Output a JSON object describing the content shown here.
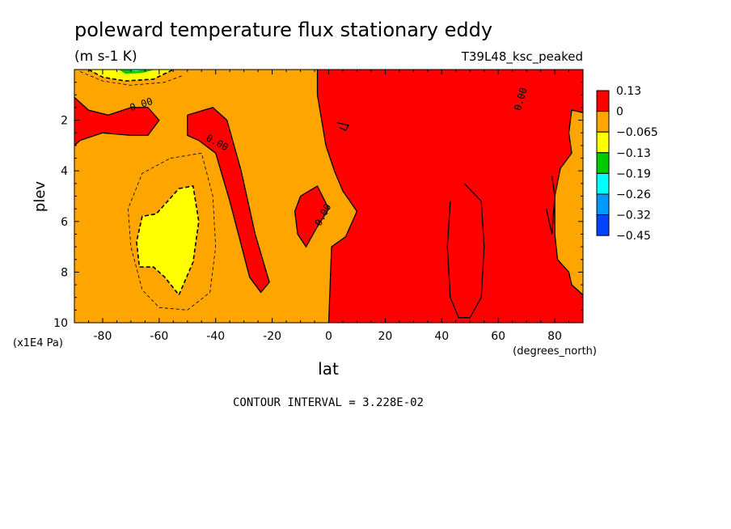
{
  "chart_data": {
    "type": "contour",
    "title": "poleward temperature flux stationary eddy",
    "units": "(m s-1 K)",
    "run_label": "T39L48_ksc_peaked",
    "xlabel": "lat",
    "x_units": "(degrees_north)",
    "ylabel": "plev",
    "y_scale_label": "(x1E4 Pa)",
    "xlim": [
      -90,
      90
    ],
    "ylim": [
      10,
      0
    ],
    "x_ticks": [
      -80,
      -60,
      -40,
      -20,
      0,
      20,
      40,
      60,
      80
    ],
    "x_tick_labels": [
      "-80",
      "-60",
      "-40",
      "-20",
      "0",
      "20",
      "40",
      "60",
      "80"
    ],
    "y_ticks": [
      2,
      4,
      6,
      8,
      10
    ],
    "y_tick_labels": [
      "2",
      "4",
      "6",
      "8",
      "10"
    ],
    "contour_interval_text": "CONTOUR INTERVAL = 3.228E-02",
    "contour_labels": [
      "0.00",
      "0.00",
      "0.00",
      "0.00",
      "0.00"
    ],
    "colorbar": {
      "levels": [
        "0.13",
        "0",
        "−0.065",
        "−0.13",
        "−0.19",
        "−0.26",
        "−0.32",
        "−0.45"
      ],
      "colors": [
        "#ff0000",
        "#ffa500",
        "#ffff00",
        "#00cc00",
        "#00ffff",
        "#0099ff",
        "#0044ff"
      ]
    },
    "regions": [
      {
        "name": "negative-flux-background",
        "color": "#ffa500",
        "points": [
          [
            -90,
            0
          ],
          [
            90,
            0
          ],
          [
            90,
            10
          ],
          [
            -90,
            10
          ]
        ]
      },
      {
        "name": "positive-flux-north",
        "color": "#ff0000",
        "points": [
          [
            -4,
            0
          ],
          [
            90,
            0
          ],
          [
            90,
            1.7
          ],
          [
            86,
            1.6
          ],
          [
            85,
            2.5
          ],
          [
            86,
            3.3
          ],
          [
            82,
            3.9
          ],
          [
            80,
            5
          ],
          [
            80,
            6.5
          ],
          [
            81,
            7.5
          ],
          [
            85,
            8
          ],
          [
            86,
            8.5
          ],
          [
            90,
            8.9
          ],
          [
            90,
            10
          ],
          [
            0,
            10
          ],
          [
            1,
            7
          ],
          [
            6,
            6.6
          ],
          [
            10,
            5.6
          ],
          [
            5,
            4.8
          ],
          [
            2,
            4
          ],
          [
            -1,
            3
          ],
          [
            -4,
            1
          ]
        ]
      },
      {
        "name": "positive-flux-south-high",
        "color": "#ff0000",
        "points": [
          [
            -90,
            1.1
          ],
          [
            -85,
            1.6
          ],
          [
            -78,
            1.8
          ],
          [
            -70,
            1.5
          ],
          [
            -64,
            1.5
          ],
          [
            -60,
            2
          ],
          [
            -64,
            2.6
          ],
          [
            -70,
            2.6
          ],
          [
            -80,
            2.5
          ],
          [
            -88,
            2.8
          ],
          [
            -90,
            3.0
          ]
        ]
      },
      {
        "name": "positive-flux-midlat-tongue",
        "color": "#ff0000",
        "points": [
          [
            -50,
            1.8
          ],
          [
            -41,
            1.5
          ],
          [
            -36,
            2
          ],
          [
            -31,
            4
          ],
          [
            -26,
            6.5
          ],
          [
            -21,
            8.4
          ],
          [
            -24,
            8.8
          ],
          [
            -28,
            8.2
          ],
          [
            -35,
            5.2
          ],
          [
            -40,
            3.3
          ],
          [
            -46,
            2.8
          ],
          [
            -50,
            2.6
          ]
        ]
      },
      {
        "name": "positive-flux-tropics",
        "color": "#ff0000",
        "points": [
          [
            -10,
            5
          ],
          [
            -4,
            4.6
          ],
          [
            0,
            5.5
          ],
          [
            -4,
            6.2
          ],
          [
            -8,
            7
          ],
          [
            -11,
            6.5
          ],
          [
            -12,
            5.6
          ]
        ]
      },
      {
        "name": "negative-flux-south-yellow",
        "color": "#ffff00",
        "points": [
          [
            -53,
            4.7
          ],
          [
            -48,
            4.6
          ],
          [
            -46,
            6
          ],
          [
            -48,
            7.6
          ],
          [
            -53,
            8.9
          ],
          [
            -58,
            8.2
          ],
          [
            -62,
            7.8
          ],
          [
            -67,
            7.8
          ],
          [
            -68,
            6.8
          ],
          [
            -66,
            5.8
          ],
          [
            -61,
            5.7
          ],
          [
            -57,
            5.2
          ]
        ]
      },
      {
        "name": "negative-flux-polar-yellow",
        "color": "#ffff00",
        "points": [
          [
            -85,
            0
          ],
          [
            -55,
            0
          ],
          [
            -62,
            0.38
          ],
          [
            -72,
            0.45
          ],
          [
            -80,
            0.3
          ]
        ]
      },
      {
        "name": "negative-flux-polar-green",
        "color": "#00cc00",
        "points": [
          [
            -74,
            0.02
          ],
          [
            -62,
            0.02
          ],
          [
            -66,
            0.13
          ],
          [
            -72,
            0.17
          ]
        ]
      },
      {
        "name": "negative-flux-polar-cyan",
        "color": "#00ffff",
        "points": [
          [
            -71,
            0.02
          ],
          [
            -66,
            0.02
          ],
          [
            -68,
            0.07
          ]
        ]
      }
    ],
    "contour_lines": [
      {
        "name": "zero-contour-south-high",
        "style": "solid",
        "points": [
          [
            -90,
            1.1
          ],
          [
            -85,
            1.6
          ],
          [
            -78,
            1.8
          ],
          [
            -70,
            1.5
          ],
          [
            -64,
            1.5
          ],
          [
            -60,
            2
          ],
          [
            -64,
            2.6
          ],
          [
            -70,
            2.6
          ],
          [
            -80,
            2.5
          ],
          [
            -88,
            2.8
          ],
          [
            -90,
            3.0
          ]
        ]
      },
      {
        "name": "zero-contour-midlat-tongue",
        "style": "solid",
        "points": [
          [
            -50,
            1.8
          ],
          [
            -41,
            1.5
          ],
          [
            -36,
            2
          ],
          [
            -31,
            4
          ],
          [
            -26,
            6.5
          ],
          [
            -21,
            8.4
          ],
          [
            -24,
            8.8
          ],
          [
            -28,
            8.2
          ],
          [
            -35,
            5.2
          ],
          [
            -40,
            3.3
          ],
          [
            -46,
            2.8
          ],
          [
            -50,
            2.6
          ],
          [
            -50,
            1.8
          ]
        ]
      },
      {
        "name": "zero-contour-tropics",
        "style": "solid",
        "points": [
          [
            -10,
            5
          ],
          [
            -4,
            4.6
          ],
          [
            0,
            5.5
          ],
          [
            -4,
            6.2
          ],
          [
            -8,
            7
          ],
          [
            -11,
            6.5
          ],
          [
            -12,
            5.6
          ],
          [
            -10,
            5
          ]
        ]
      },
      {
        "name": "zero-contour-north",
        "style": "solid",
        "points": [
          [
            -4,
            0
          ],
          [
            -4,
            1
          ],
          [
            -1,
            3
          ],
          [
            2,
            4
          ],
          [
            5,
            4.8
          ],
          [
            10,
            5.6
          ],
          [
            6,
            6.6
          ],
          [
            1,
            7
          ],
          [
            0,
            10
          ]
        ]
      },
      {
        "name": "zero-contour-north-rim",
        "style": "solid",
        "points": [
          [
            90,
            1.7
          ],
          [
            86,
            1.6
          ],
          [
            85,
            2.5
          ],
          [
            86,
            3.3
          ],
          [
            82,
            3.9
          ],
          [
            80,
            5
          ],
          [
            80,
            6.5
          ],
          [
            81,
            7.5
          ],
          [
            85,
            8
          ],
          [
            86,
            8.5
          ],
          [
            90,
            8.9
          ]
        ]
      },
      {
        "name": "zero-contour-small-island",
        "style": "solid",
        "points": [
          [
            3,
            2.1
          ],
          [
            7,
            2.2
          ],
          [
            6,
            2.4
          ],
          [
            4,
            2.3
          ]
        ]
      },
      {
        "name": "positive-inner-loop-north",
        "style": "solid",
        "points": [
          [
            48,
            4.5
          ],
          [
            54,
            5.2
          ],
          [
            55,
            7
          ],
          [
            54,
            9
          ],
          [
            50,
            9.8
          ],
          [
            46,
            9.8
          ],
          [
            43,
            9
          ],
          [
            42,
            7
          ],
          [
            43,
            5.2
          ]
        ]
      },
      {
        "name": "positive-inner-loop-east",
        "style": "solid",
        "points": [
          [
            79,
            4.2
          ],
          [
            80,
            5
          ],
          [
            79,
            6.5
          ],
          [
            77,
            5.5
          ]
        ]
      },
      {
        "name": "negative-contour-south-inner",
        "style": "dashed-bold",
        "points": [
          [
            -53,
            4.7
          ],
          [
            -48,
            4.6
          ],
          [
            -46,
            6
          ],
          [
            -48,
            7.6
          ],
          [
            -53,
            8.9
          ],
          [
            -58,
            8.2
          ],
          [
            -62,
            7.8
          ],
          [
            -67,
            7.8
          ],
          [
            -68,
            6.8
          ],
          [
            -66,
            5.8
          ],
          [
            -61,
            5.7
          ],
          [
            -57,
            5.2
          ],
          [
            -53,
            4.7
          ]
        ]
      },
      {
        "name": "negative-contour-south-outer",
        "style": "dashed",
        "points": [
          [
            -56,
            3.5
          ],
          [
            -45,
            3.3
          ],
          [
            -41,
            5
          ],
          [
            -40,
            7
          ],
          [
            -42,
            8.8
          ],
          [
            -50,
            9.5
          ],
          [
            -60,
            9.4
          ],
          [
            -66,
            8.7
          ],
          [
            -70,
            7
          ],
          [
            -71,
            5.5
          ],
          [
            -66,
            4.1
          ],
          [
            -56,
            3.5
          ]
        ]
      },
      {
        "name": "negative-contour-polar-outer",
        "style": "dashed",
        "points": [
          [
            -88,
            0.08
          ],
          [
            -80,
            0.45
          ],
          [
            -70,
            0.62
          ],
          [
            -58,
            0.5
          ],
          [
            -52,
            0.25
          ]
        ]
      },
      {
        "name": "negative-contour-polar-yellow",
        "style": "dashed-bold",
        "points": [
          [
            -85,
            0
          ],
          [
            -80,
            0.3
          ],
          [
            -72,
            0.45
          ],
          [
            -62,
            0.38
          ],
          [
            -55,
            0
          ]
        ]
      }
    ]
  }
}
